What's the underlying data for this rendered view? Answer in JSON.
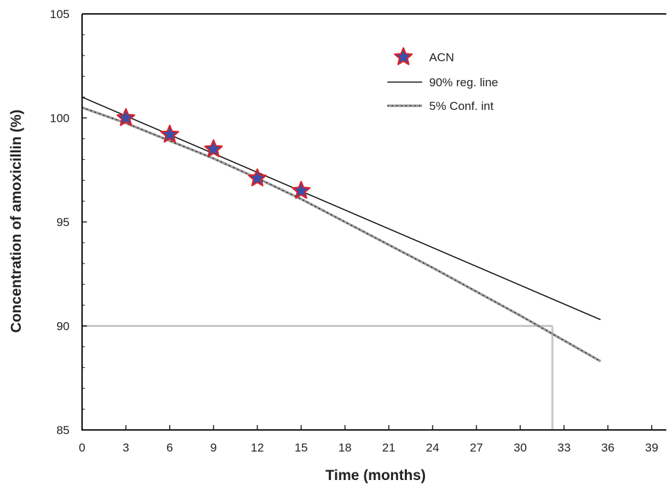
{
  "chart_data": {
    "type": "line",
    "xlabel": "Time (months)",
    "ylabel": "Concentration of amoxicillin (%)",
    "xlim": [
      0,
      40
    ],
    "ylim": [
      85,
      105
    ],
    "x_ticks": [
      0,
      3,
      6,
      9,
      12,
      15,
      18,
      21,
      24,
      27,
      30,
      33,
      36,
      39
    ],
    "x_tick_labels": [
      "0",
      "3",
      "6",
      "9",
      "12",
      "15",
      "18",
      "21",
      "24",
      "27",
      "30",
      "33",
      "36",
      "39"
    ],
    "y_ticks": [
      85,
      90,
      95,
      100,
      105
    ],
    "y_tick_labels": [
      "85",
      "90",
      "95",
      "100",
      "105"
    ],
    "legend_position": "top-right",
    "series": [
      {
        "name": "ACN",
        "kind": "scatter",
        "marker": "star",
        "fill_color": "#3a4fa8",
        "edge_color": "#d8232a",
        "x": [
          3,
          6,
          9,
          12,
          15
        ],
        "y": [
          100.0,
          99.2,
          98.5,
          97.1,
          96.5
        ]
      },
      {
        "name": "90% reg. line",
        "kind": "line",
        "color": "#111111",
        "x": [
          0,
          35.5
        ],
        "y": [
          101.0,
          90.3
        ]
      },
      {
        "name": "5% Conf. int",
        "kind": "line",
        "color": "#9a9a9a",
        "dot_color": "#111111",
        "x": [
          0,
          3,
          6,
          9,
          12,
          15,
          18,
          21,
          24,
          27,
          30,
          33,
          35.5
        ],
        "y": [
          100.5,
          99.75,
          98.9,
          98.05,
          97.1,
          96.1,
          95.0,
          93.9,
          92.8,
          91.65,
          90.5,
          89.3,
          88.3
        ]
      }
    ],
    "reference_lines": [
      {
        "kind": "horizontal",
        "y": 90,
        "x_from": 0,
        "x_to": 32.2,
        "color": "#c8c8c8"
      },
      {
        "kind": "vertical",
        "x": 32.2,
        "y_from": 85,
        "y_to": 90,
        "color": "#c8c8c8"
      }
    ]
  }
}
